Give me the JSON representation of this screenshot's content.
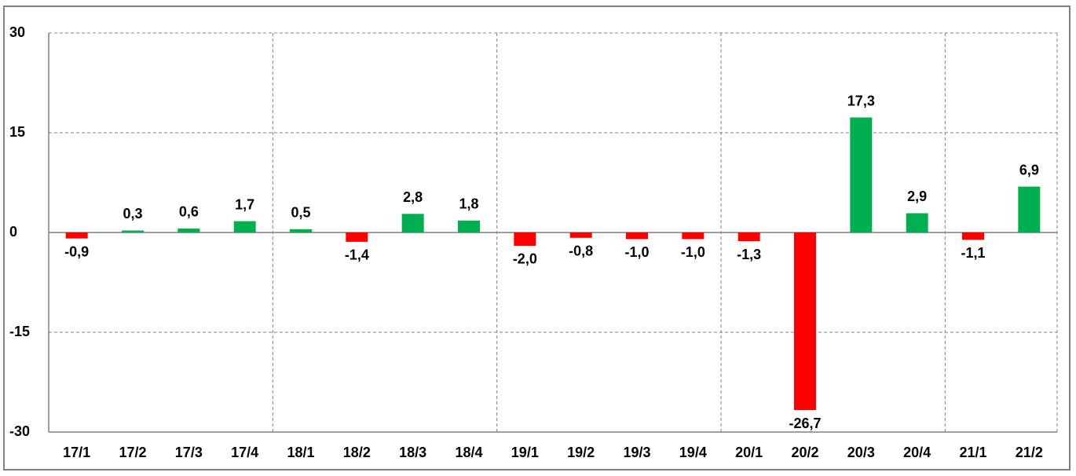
{
  "chart_data": {
    "type": "bar",
    "categories": [
      "17/1",
      "17/2",
      "17/3",
      "17/4",
      "18/1",
      "18/2",
      "18/3",
      "18/4",
      "19/1",
      "19/2",
      "19/3",
      "19/4",
      "20/1",
      "20/2",
      "20/3",
      "20/4",
      "21/1",
      "21/2"
    ],
    "values": [
      -0.9,
      0.3,
      0.6,
      1.7,
      0.5,
      -1.4,
      2.8,
      1.8,
      -2.0,
      -0.8,
      -1.0,
      -1.0,
      -1.3,
      -26.7,
      17.3,
      2.9,
      -1.1,
      6.9
    ],
    "value_labels": [
      "-0,9",
      "0,3",
      "0,6",
      "1,7",
      "0,5",
      "-1,4",
      "2,8",
      "1,8",
      "-2,0",
      "-0,8",
      "-1,0",
      "-1,0",
      "-1,3",
      "-26,7",
      "17,3",
      "2,9",
      "-1,1",
      "6,9"
    ],
    "positive_color": "#00b050",
    "negative_color": "#ff0000",
    "ylim": [
      -30,
      30
    ],
    "yticks": [
      30,
      15,
      0,
      -15,
      -30
    ],
    "grid": true
  }
}
